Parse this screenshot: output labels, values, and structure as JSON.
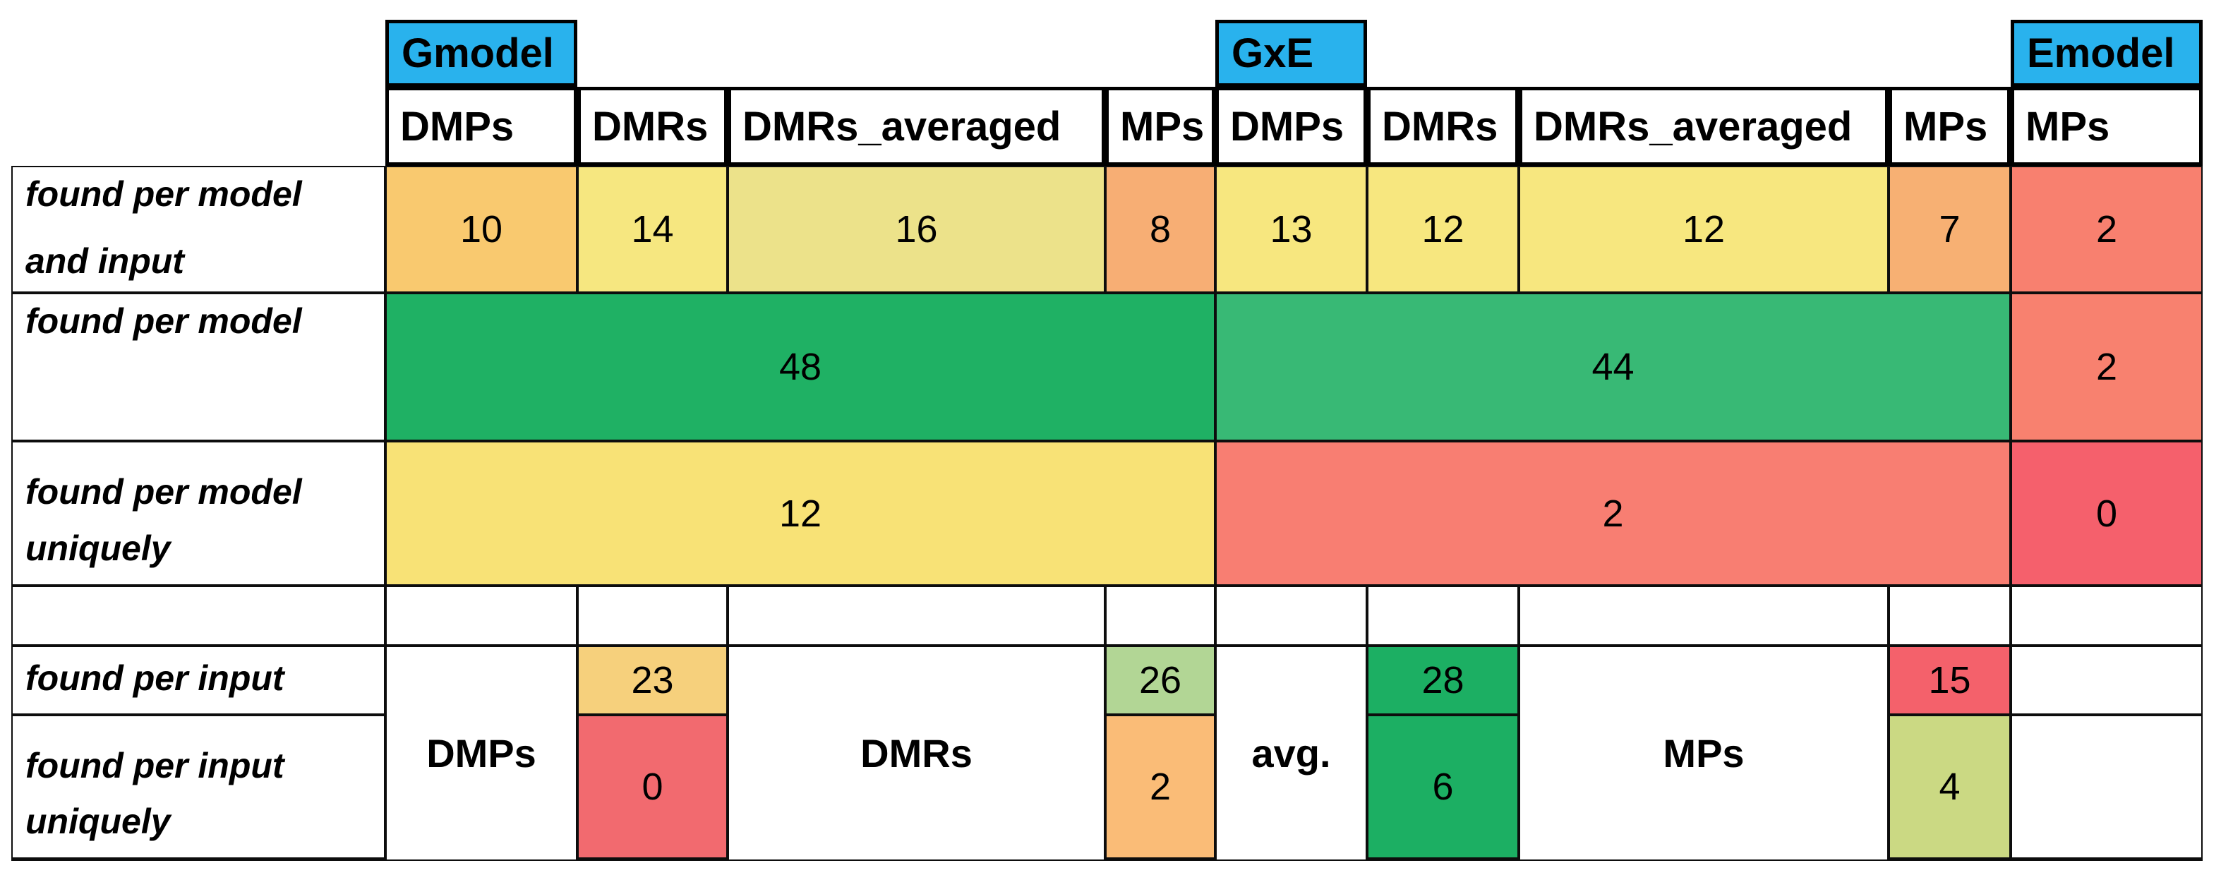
{
  "colors": {
    "blue_header": "#29B2ED",
    "amber_10": "#F9C96F",
    "yellow_14": "#F6E780",
    "dull_yellow_16": "#ECE28A",
    "orange_8": "#F7AE74",
    "yellow_13": "#F7E77F",
    "yellow_12a": "#F7E77F",
    "yellow_12b": "#F7E77F",
    "orange_7": "#F7B073",
    "salmon_2_top": "#F8806F",
    "green_48": "#1FB164",
    "green_44": "#38B975",
    "salmon_2_mid": "#F8816F",
    "yellow_12_uniq": "#F8E276",
    "salmon_2_uniq": "#F87E72",
    "red_0_emodel": "#F5606C",
    "gold_23": "#F6D07C",
    "leaf_26": "#B2D695",
    "green_28": "#1CAF63",
    "red_15": "#F4616B",
    "red_0_input": "#F26A6F",
    "orange_2_input": "#FABC77",
    "green_6": "#1CAF63",
    "yellowgreen_4": "#CBD983"
  },
  "table": {
    "group_headers": {
      "gmodel": "Gmodel",
      "gxe": "GxE",
      "emodel": "Emodel"
    },
    "col_headers": [
      "DMPs",
      "DMRs",
      "DMRs_averaged",
      "MPs",
      "DMPs",
      "DMRs",
      "DMRs_averaged",
      "MPs",
      "MPs"
    ],
    "rows": {
      "model_input": {
        "lines": [
          "found per model",
          "and input"
        ],
        "values": [
          "10",
          "14",
          "16",
          "8",
          "13",
          "12",
          "12",
          "7",
          "2"
        ]
      },
      "model": {
        "label": "found per model",
        "values": [
          "48",
          "44",
          "2"
        ]
      },
      "model_uniquely": {
        "lines": [
          "found per model",
          "uniquely"
        ],
        "values": [
          "12",
          "2",
          "0"
        ]
      },
      "input": {
        "label": "found per input",
        "values": [
          "23",
          "26",
          "28",
          "15"
        ]
      },
      "input_uniquely": {
        "lines": [
          "found per input",
          "uniquely"
        ],
        "values": [
          "0",
          "2",
          "6",
          "4"
        ]
      }
    },
    "input_group_labels": [
      "DMPs",
      "DMRs",
      "avg.",
      "MPs"
    ]
  },
  "chart_data": {
    "type": "table",
    "title": "",
    "column_groups": [
      {
        "label": "Gmodel",
        "columns": [
          "DMPs",
          "DMRs",
          "DMRs_averaged",
          "MPs"
        ]
      },
      {
        "label": "GxE",
        "columns": [
          "DMPs",
          "DMRs",
          "DMRs_averaged",
          "MPs"
        ]
      },
      {
        "label": "Emodel",
        "columns": [
          "MPs"
        ]
      }
    ],
    "rows": [
      {
        "label": "found per model and input",
        "values": [
          10,
          14,
          16,
          8,
          13,
          12,
          12,
          7,
          2
        ]
      },
      {
        "label": "found per model",
        "merged_values": [
          {
            "span": "Gmodel (DMPs-MPs)",
            "value": 48
          },
          {
            "span": "GxE (DMPs-MPs)",
            "value": 44
          },
          {
            "span": "Emodel MPs",
            "value": 2
          }
        ]
      },
      {
        "label": "found per model uniquely",
        "merged_values": [
          {
            "span": "Gmodel (DMPs-MPs)",
            "value": 12
          },
          {
            "span": "GxE (DMPs-MPs)",
            "value": 2
          },
          {
            "span": "Emodel MPs",
            "value": 0
          }
        ]
      },
      {
        "label": "found per input",
        "values_by_column": {
          "Gmodel DMRs": 23,
          "Gmodel MPs": 26,
          "GxE DMRs": 28,
          "GxE MPs": 15
        }
      },
      {
        "label": "found per input uniquely",
        "values_by_column": {
          "Gmodel DMRs": 0,
          "Gmodel MPs": 2,
          "GxE DMRs": 6,
          "GxE MPs": 4
        }
      }
    ],
    "bottom_merged_input_labels": [
      "DMPs",
      "DMRs",
      "avg.",
      "MPs"
    ],
    "legend_position": "none",
    "grid": true
  }
}
